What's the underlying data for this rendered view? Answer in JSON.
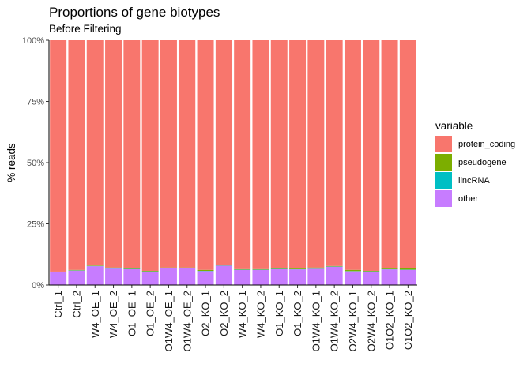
{
  "chart_data": {
    "type": "bar",
    "stacked": true,
    "title": "Proportions of gene biotypes",
    "subtitle": "Before Filtering",
    "xlabel": "",
    "ylabel": "% reads",
    "ylim": [
      0,
      1
    ],
    "yticks": [
      "0%",
      "25%",
      "50%",
      "75%",
      "100%"
    ],
    "legend_title": "variable",
    "legend_position": "right",
    "grid": false,
    "categories": [
      "Ctrl_1",
      "Ctrl_2",
      "W4_OE_1",
      "W4_OE_2",
      "O1_OE_1",
      "O1_OE_2",
      "O1W4_OE_1",
      "O1W4_OE_2",
      "O2_KO_1",
      "O2_KO_2",
      "W4_KO_1",
      "W4_KO_2",
      "O1_KO_1",
      "O1_KO_2",
      "O1W4_KO_1",
      "O1W4_KO_2",
      "O2W4_KO_1",
      "O2W4_KO_2",
      "O1O2_KO_1",
      "O1O2_KO_2"
    ],
    "series": [
      {
        "name": "protein_coding",
        "color": "#F8766D",
        "values": [
          0.945,
          0.938,
          0.92,
          0.928,
          0.932,
          0.942,
          0.928,
          0.928,
          0.938,
          0.918,
          0.935,
          0.935,
          0.932,
          0.932,
          0.928,
          0.922,
          0.938,
          0.942,
          0.932,
          0.932
        ]
      },
      {
        "name": "pseudogene",
        "color": "#7CAE00",
        "values": [
          0.002,
          0.002,
          0.002,
          0.004,
          0.002,
          0.002,
          0.002,
          0.002,
          0.004,
          0.002,
          0.002,
          0.002,
          0.002,
          0.003,
          0.005,
          0.002,
          0.005,
          0.002,
          0.003,
          0.005
        ]
      },
      {
        "name": "lincRNA",
        "color": "#00BFC4",
        "values": [
          0.001,
          0.001,
          0.001,
          0.001,
          0.001,
          0.001,
          0.001,
          0.001,
          0.001,
          0.001,
          0.001,
          0.001,
          0.001,
          0.001,
          0.001,
          0.001,
          0.001,
          0.001,
          0.001,
          0.001
        ]
      },
      {
        "name": "other",
        "color": "#C77CFF",
        "values": [
          0.052,
          0.059,
          0.077,
          0.067,
          0.065,
          0.055,
          0.069,
          0.069,
          0.057,
          0.079,
          0.062,
          0.062,
          0.065,
          0.064,
          0.066,
          0.075,
          0.056,
          0.055,
          0.064,
          0.062
        ]
      }
    ]
  }
}
